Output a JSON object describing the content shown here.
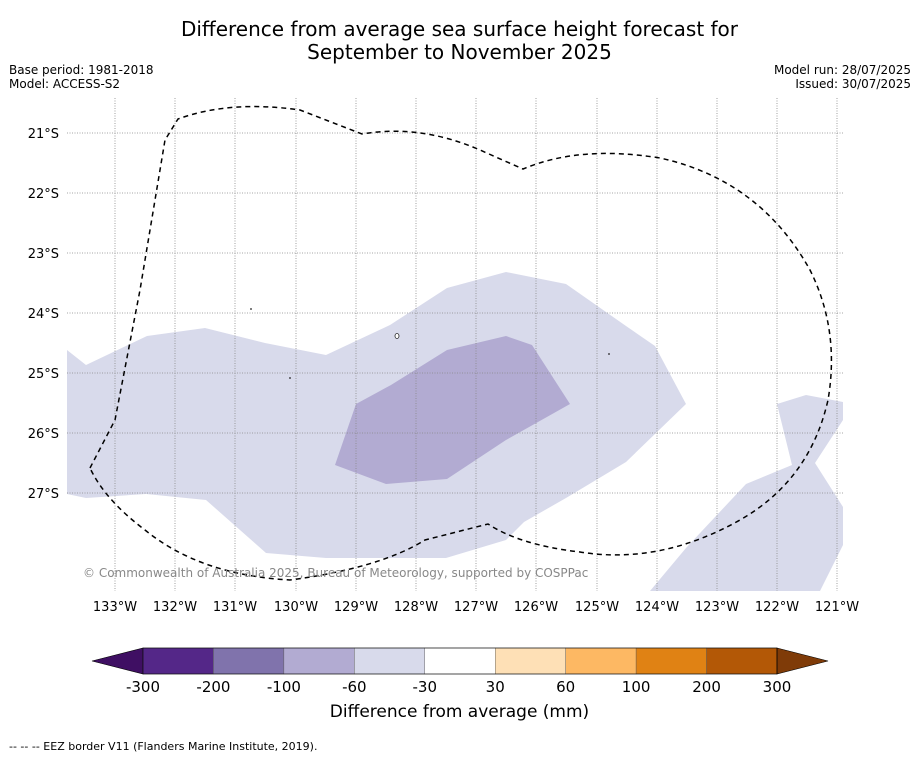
{
  "title_line1": "Difference from average sea surface height forecast for",
  "title_line2": "September to November 2025",
  "meta_left": [
    "Base period: 1981-2018",
    "Model: ACCESS-S2"
  ],
  "meta_right": [
    "Model run: 28/07/2025",
    "Issued: 30/07/2025"
  ],
  "copyright": "© Commonwealth of Australia 2025, Bureau of Meteorology, supported by COSPPac",
  "lat_labels": [
    "21°S",
    "22°S",
    "23°S",
    "24°S",
    "25°S",
    "26°S",
    "27°S"
  ],
  "lon_labels": [
    "133°W",
    "132°W",
    "131°W",
    "130°W",
    "129°W",
    "128°W",
    "127°W",
    "126°W",
    "125°W",
    "124°W",
    "123°W",
    "122°W",
    "121°W"
  ],
  "colorbar": {
    "title": "Difference from average (mm)",
    "ticks": [
      "-300",
      "-200",
      "-100",
      "-60",
      "-30",
      "30",
      "60",
      "100",
      "200",
      "300"
    ],
    "colors": [
      "#3f0f63",
      "#542788",
      "#8073ac",
      "#b2abd2",
      "#d8daeb",
      "#ffffff",
      "#fee0b6",
      "#fdb863",
      "#e08214",
      "#b35806",
      "#7f3b08"
    ]
  },
  "footer": "--  --  -- EEZ border V11 (Flanders Marine Institute, 2019)."
}
